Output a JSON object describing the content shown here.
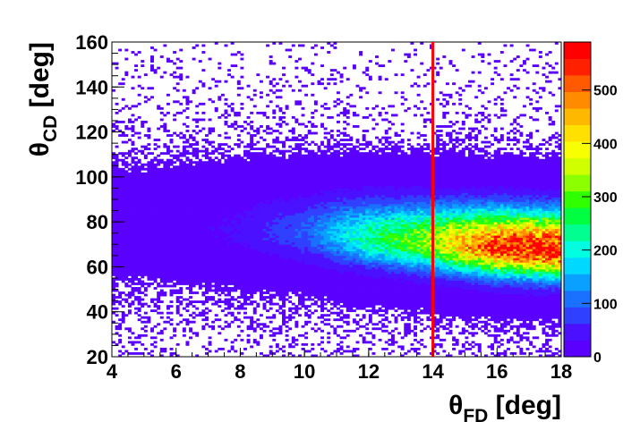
{
  "chart_data": {
    "type": "heatmap",
    "title": "",
    "xlabel": {
      "symbol": "θ",
      "subscript": "FD",
      "unit": "[deg]"
    },
    "ylabel": {
      "symbol": "θ",
      "subscript": "CD",
      "unit": "[deg]"
    },
    "xlim": [
      4,
      18
    ],
    "ylim": [
      20,
      160
    ],
    "zlim": [
      0,
      590
    ],
    "x_ticks": [
      "4",
      "6",
      "8",
      "10",
      "12",
      "14",
      "16",
      "18"
    ],
    "y_ticks": [
      "20",
      "40",
      "60",
      "80",
      "100",
      "120",
      "140",
      "160"
    ],
    "z_ticks": [
      "0",
      "100",
      "200",
      "300",
      "400",
      "500"
    ],
    "grid": false,
    "colormap": [
      "#5a00ff",
      "#4a10ff",
      "#3040ff",
      "#1a70ff",
      "#0aa0ff",
      "#00d8ff",
      "#00ffe0",
      "#00ff90",
      "#00ff40",
      "#30ff00",
      "#8cff00",
      "#d0ff00",
      "#f8ff00",
      "#ffe000",
      "#ffb800",
      "#ff8c00",
      "#ff5a00",
      "#ff2000",
      "#ff0000"
    ],
    "distribution": {
      "description_values": "2D histogram of theta_CD vs theta_FD; ridge centre theta_CD ≈ 68–77 deg, peak ~590 counts near theta_FD ≈ 16–17 deg",
      "ridge": [
        {
          "x": 4.5,
          "y_center": 77,
          "peak": 8
        },
        {
          "x": 6,
          "y_center": 77,
          "peak": 14
        },
        {
          "x": 8,
          "y_center": 76,
          "peak": 35
        },
        {
          "x": 10,
          "y_center": 75,
          "peak": 90
        },
        {
          "x": 12,
          "y_center": 73,
          "peak": 230
        },
        {
          "x": 14,
          "y_center": 71,
          "peak": 340
        },
        {
          "x": 16,
          "y_center": 69,
          "peak": 540
        },
        {
          "x": 17.5,
          "y_center": 68,
          "peak": 560
        }
      ]
    },
    "vertical_line": {
      "x": 14,
      "color": "#ff0000"
    }
  }
}
